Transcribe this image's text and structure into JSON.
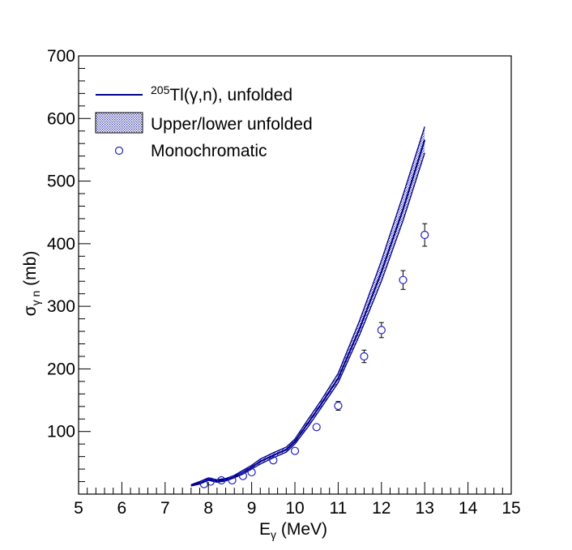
{
  "chart_data": {
    "type": "line",
    "xlabel_main": "E",
    "xlabel_sub": "γ",
    "xlabel_unit": " (MeV)",
    "ylabel_main": "σ",
    "ylabel_sub": "γ n",
    "ylabel_unit": " (mb)",
    "xlim": [
      5,
      15
    ],
    "ylim": [
      0,
      700
    ],
    "x_ticks": [
      5,
      6,
      7,
      8,
      9,
      10,
      11,
      12,
      13,
      14,
      15
    ],
    "y_ticks": [
      100,
      200,
      300,
      400,
      500,
      600,
      700
    ],
    "grid": false,
    "legend_position": "top-left",
    "legend": {
      "unfolded_sup": "205",
      "unfolded_text": "Tl(γ,n), unfolded",
      "band": "Upper/lower unfolded",
      "mono": "Monochromatic"
    },
    "colors": {
      "series": "#00008b",
      "points": "#2020c0",
      "band_fill": "#7a7ac8"
    },
    "series": [
      {
        "name": "Tl(γ,n), unfolded",
        "x": [
          7.6,
          7.8,
          8.0,
          8.2,
          8.4,
          8.6,
          8.8,
          9.0,
          9.2,
          9.5,
          9.8,
          10.0,
          10.3,
          10.6,
          11.0,
          11.5,
          12.0,
          12.5,
          13.0
        ],
        "y": [
          14,
          18,
          24,
          21,
          23,
          28,
          35,
          43,
          52,
          62,
          71,
          84,
          113,
          143,
          185,
          265,
          355,
          455,
          566
        ]
      },
      {
        "name": "Upper/lower unfolded",
        "x": [
          7.6,
          7.8,
          8.0,
          8.2,
          8.4,
          8.6,
          8.8,
          9.0,
          9.2,
          9.5,
          9.8,
          10.0,
          10.3,
          10.6,
          11.0,
          11.5,
          12.0,
          12.5,
          13.0
        ],
        "upper": [
          15,
          20,
          26,
          23,
          25,
          30,
          38,
          46,
          56,
          66,
          75,
          88,
          119,
          149,
          193,
          278,
          373,
          478,
          587
        ],
        "lower": [
          13,
          16,
          22,
          19,
          21,
          26,
          32,
          40,
          48,
          58,
          67,
          80,
          107,
          137,
          178,
          255,
          340,
          437,
          545
        ]
      },
      {
        "name": "Monochromatic",
        "x": [
          7.9,
          8.05,
          8.3,
          8.55,
          8.8,
          9.0,
          9.5,
          10.0,
          10.5,
          11.0,
          11.6,
          12.0,
          12.5,
          13.0
        ],
        "y": [
          16,
          20,
          22,
          22,
          29,
          35,
          54,
          69,
          107,
          141,
          220,
          262,
          342,
          414
        ],
        "err": [
          0,
          0,
          0,
          0,
          0,
          0,
          0,
          0,
          0,
          7,
          10,
          12,
          15,
          18
        ]
      }
    ]
  }
}
